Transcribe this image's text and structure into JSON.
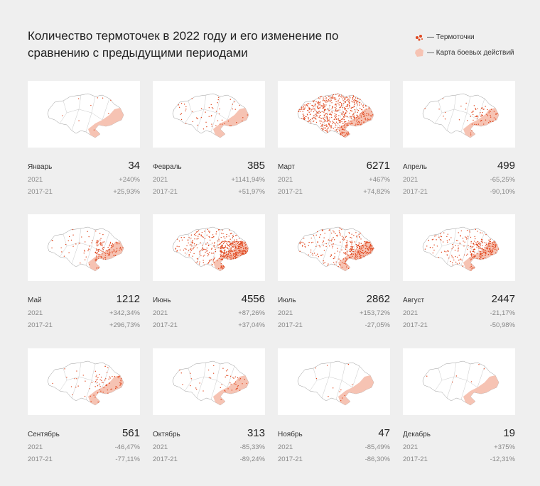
{
  "title": "Количество термоточек в 2022 году и его изменение по сравнению с предыдущими периодами",
  "legend": {
    "points": "— Термоточки",
    "zone": "— Карта боевых действий"
  },
  "colors": {
    "points": "#e0471e",
    "zone": "#f6c3b3",
    "background": "#efefef"
  },
  "row_labels": {
    "y2021": "2021",
    "y2017": "2017-21"
  },
  "months": [
    {
      "name": "Январь",
      "count": 34,
      "vs2021": "+240%",
      "vs2017": "+25,93%"
    },
    {
      "name": "Февраль",
      "count": 385,
      "vs2021": "+1141,94%",
      "vs2017": "+51,97%"
    },
    {
      "name": "Март",
      "count": 6271,
      "vs2021": "+467%",
      "vs2017": "+74,82%"
    },
    {
      "name": "Апрель",
      "count": 499,
      "vs2021": "-65,25%",
      "vs2017": "-90,10%"
    },
    {
      "name": "Май",
      "count": 1212,
      "vs2021": "+342,34%",
      "vs2017": "+296,73%"
    },
    {
      "name": "Июнь",
      "count": 4556,
      "vs2021": "+87,26%",
      "vs2017": "+37,04%"
    },
    {
      "name": "Июль",
      "count": 2862,
      "vs2021": "+153,72%",
      "vs2017": "-27,05%"
    },
    {
      "name": "Август",
      "count": 2447,
      "vs2021": "-21,17%",
      "vs2017": "-50,98%"
    },
    {
      "name": "Сентябрь",
      "count": 561,
      "vs2021": "-46,47%",
      "vs2017": "-77,11%"
    },
    {
      "name": "Октябрь",
      "count": 313,
      "vs2021": "-85,33%",
      "vs2017": "-89,24%"
    },
    {
      "name": "Ноябрь",
      "count": 47,
      "vs2021": "-85,49%",
      "vs2017": "-86,30%"
    },
    {
      "name": "Декабрь",
      "count": 19,
      "vs2021": "+375%",
      "vs2017": "-12,31%"
    }
  ]
}
